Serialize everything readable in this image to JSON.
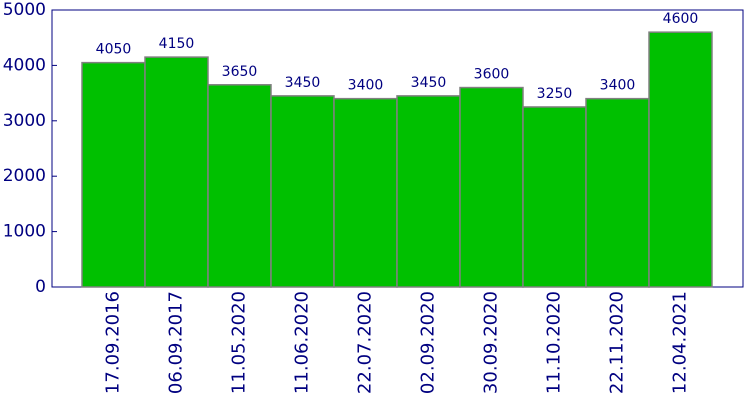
{
  "chart_data": {
    "type": "bar",
    "categories": [
      "17.09.2016",
      "06.09.2017",
      "11.05.2020",
      "11.06.2020",
      "22.07.2020",
      "02.09.2020",
      "30.09.2020",
      "11.10.2020",
      "22.11.2020",
      "12.04.2021"
    ],
    "values": [
      4050,
      4150,
      3650,
      3450,
      3400,
      3450,
      3600,
      3250,
      3400,
      4600
    ],
    "color": "#00c000",
    "ylim": [
      0,
      5000
    ],
    "yticks": [
      0,
      1000,
      2000,
      3000,
      4000,
      5000
    ]
  }
}
